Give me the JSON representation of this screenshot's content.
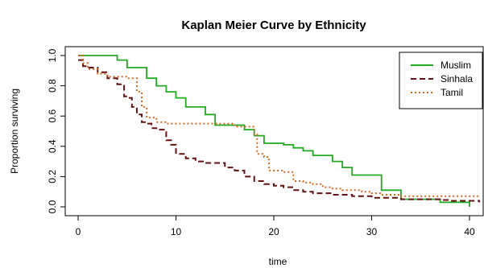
{
  "chart_data": {
    "type": "line",
    "step": true,
    "title": "Kaplan Meier Curve by Ethnicity",
    "xlabel": "time",
    "ylabel": "Proportion surviving",
    "xlim": [
      0,
      40
    ],
    "ylim": [
      0,
      1
    ],
    "x_ticks": [
      0,
      10,
      20,
      30,
      40
    ],
    "x_tick_labels": [
      "0",
      "10",
      "20",
      "30",
      "40"
    ],
    "y_ticks": [
      0,
      0.2,
      0.4,
      0.6,
      0.8,
      1.0
    ],
    "y_tick_labels": [
      "0.0",
      "0.2",
      "0.4",
      "0.6",
      "0.8",
      "1.0"
    ],
    "grid": false,
    "legend_position": "top-right",
    "series": [
      {
        "name": "Muslim",
        "color": "#22aa22",
        "line_style": "solid",
        "points": [
          [
            0,
            1.0
          ],
          [
            4,
            0.97
          ],
          [
            5,
            0.92
          ],
          [
            7,
            0.85
          ],
          [
            8,
            0.8
          ],
          [
            9,
            0.76
          ],
          [
            10,
            0.72
          ],
          [
            11,
            0.66
          ],
          [
            13,
            0.61
          ],
          [
            14,
            0.54
          ],
          [
            17,
            0.51
          ],
          [
            18,
            0.47
          ],
          [
            19,
            0.42
          ],
          [
            21,
            0.41
          ],
          [
            22,
            0.39
          ],
          [
            23,
            0.37
          ],
          [
            24,
            0.34
          ],
          [
            26,
            0.3
          ],
          [
            27,
            0.26
          ],
          [
            28,
            0.21
          ],
          [
            31,
            0.11
          ],
          [
            33,
            0.05
          ],
          [
            37,
            0.03
          ],
          [
            40,
            0.0
          ]
        ]
      },
      {
        "name": "Sinhala",
        "color": "#661111",
        "line_style": "dashed",
        "points": [
          [
            0,
            0.97
          ],
          [
            0.5,
            0.93
          ],
          [
            1,
            0.92
          ],
          [
            2,
            0.89
          ],
          [
            3,
            0.85
          ],
          [
            4,
            0.81
          ],
          [
            4.7,
            0.73
          ],
          [
            5,
            0.72
          ],
          [
            5.5,
            0.66
          ],
          [
            6,
            0.61
          ],
          [
            6.5,
            0.56
          ],
          [
            7,
            0.55
          ],
          [
            7.5,
            0.52
          ],
          [
            8,
            0.51
          ],
          [
            9,
            0.44
          ],
          [
            9.5,
            0.41
          ],
          [
            10,
            0.35
          ],
          [
            11,
            0.32
          ],
          [
            12,
            0.3
          ],
          [
            13,
            0.29
          ],
          [
            15,
            0.26
          ],
          [
            16,
            0.24
          ],
          [
            17,
            0.2
          ],
          [
            18,
            0.17
          ],
          [
            19,
            0.15
          ],
          [
            20,
            0.14
          ],
          [
            21,
            0.13
          ],
          [
            22,
            0.11
          ],
          [
            23,
            0.1
          ],
          [
            24,
            0.09
          ],
          [
            26,
            0.08
          ],
          [
            28,
            0.07
          ],
          [
            30,
            0.06
          ],
          [
            33,
            0.05
          ],
          [
            37,
            0.045
          ],
          [
            38,
            0.04
          ],
          [
            41,
            0.03
          ]
        ]
      },
      {
        "name": "Tamil",
        "color": "#d2691e",
        "line_style": "dotted",
        "points": [
          [
            0,
            1.0
          ],
          [
            0.5,
            0.95
          ],
          [
            1,
            0.91
          ],
          [
            2,
            0.88
          ],
          [
            3,
            0.86
          ],
          [
            5,
            0.85
          ],
          [
            6,
            0.76
          ],
          [
            6.5,
            0.66
          ],
          [
            7,
            0.59
          ],
          [
            8,
            0.56
          ],
          [
            9,
            0.55
          ],
          [
            16,
            0.53
          ],
          [
            18,
            0.48
          ],
          [
            18.3,
            0.35
          ],
          [
            19,
            0.33
          ],
          [
            19.5,
            0.24
          ],
          [
            21,
            0.23
          ],
          [
            22,
            0.17
          ],
          [
            23,
            0.16
          ],
          [
            24,
            0.15
          ],
          [
            25,
            0.13
          ],
          [
            26,
            0.12
          ],
          [
            27,
            0.11
          ],
          [
            29,
            0.1
          ],
          [
            30,
            0.09
          ],
          [
            31,
            0.08
          ],
          [
            33,
            0.07
          ],
          [
            41,
            0.07
          ]
        ]
      }
    ]
  }
}
